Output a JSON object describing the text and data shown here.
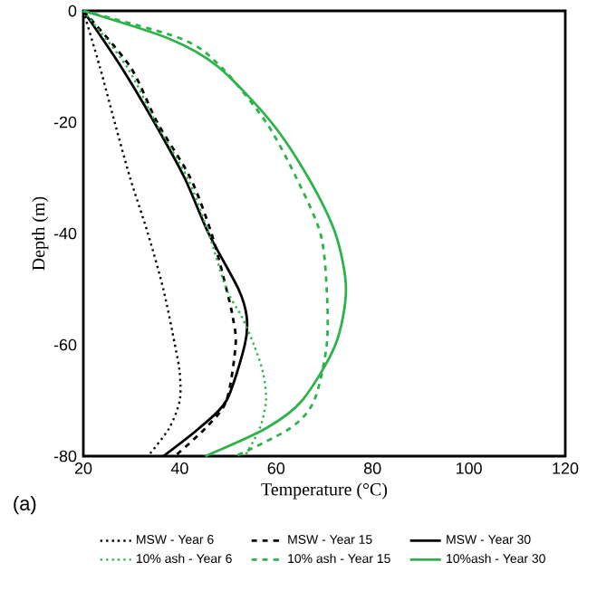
{
  "chart_data": {
    "type": "line",
    "xlabel": "Temperature (°C)",
    "ylabel": "Depth (m)",
    "xlim": [
      20,
      120
    ],
    "ylim": [
      -80,
      0
    ],
    "xticks": [
      20,
      40,
      60,
      80,
      100,
      120
    ],
    "yticks": [
      -80,
      -60,
      -40,
      -20,
      0
    ],
    "legend": "bottom",
    "marker": "none",
    "annotations": [
      "(a)"
    ],
    "series": [
      {
        "name": "MSW - Year 6",
        "color": "#000000",
        "line_style": "dotted",
        "x": [
          20,
          23.4,
          26.5,
          29.7,
          33.4,
          36.6,
          39,
          40,
          40,
          37.8,
          33.4
        ],
        "values": [
          0,
          -10,
          -20,
          -30,
          -40,
          -50,
          -60,
          -65,
          -70,
          -75,
          -80
        ]
      },
      {
        "name": "MSW - Year 15",
        "color": "#000000",
        "line_style": "dashed",
        "x": [
          20,
          29.7,
          35.3,
          42.2,
          46.6,
          49.7,
          51,
          51.6,
          49.7,
          45.3,
          39
        ],
        "values": [
          0,
          -10,
          -20,
          -30,
          -40,
          -50,
          -55,
          -60,
          -70,
          -75,
          -80
        ]
      },
      {
        "name": "MSW - Year 30",
        "color": "#000000",
        "line_style": "solid",
        "x": [
          20,
          27.8,
          34.7,
          41,
          46,
          52.2,
          53.9,
          53.5,
          49.7,
          44,
          36.6
        ],
        "values": [
          0,
          -10,
          -20,
          -30,
          -40,
          -50,
          -55,
          -60,
          -70,
          -75,
          -80
        ]
      },
      {
        "name": "10% ash - Year 6",
        "color": "#2db34a",
        "line_style": "dotted",
        "x": [
          20,
          29,
          35,
          41.6,
          46,
          49.7,
          52.9,
          55.4,
          57.3,
          57.9,
          56.6,
          53.5
        ],
        "values": [
          0,
          -10,
          -20,
          -30,
          -40,
          -50,
          -55,
          -60,
          -65,
          -70,
          -75,
          -80
        ]
      },
      {
        "name": "10% ash - Year 15",
        "color": "#2db34a",
        "line_style": "dashed",
        "x": [
          20,
          40.3,
          48.5,
          57.9,
          64.2,
          69.2,
          70.5,
          70.5,
          67.9,
          62.9,
          51.6
        ],
        "values": [
          0,
          -5,
          -10,
          -20,
          -30,
          -40,
          -50,
          -60,
          -70,
          -75,
          -80
        ]
      },
      {
        "name": "10%ash - Year 30",
        "color": "#2db34a",
        "line_style": "solid",
        "x": [
          20,
          37.8,
          47.9,
          59,
          66.7,
          72.3,
          74.5,
          72.3,
          65.4,
          57.9,
          45.3
        ],
        "values": [
          0,
          -5,
          -10,
          -20,
          -30,
          -40,
          -50,
          -60,
          -70,
          -75,
          -80
        ]
      }
    ]
  }
}
